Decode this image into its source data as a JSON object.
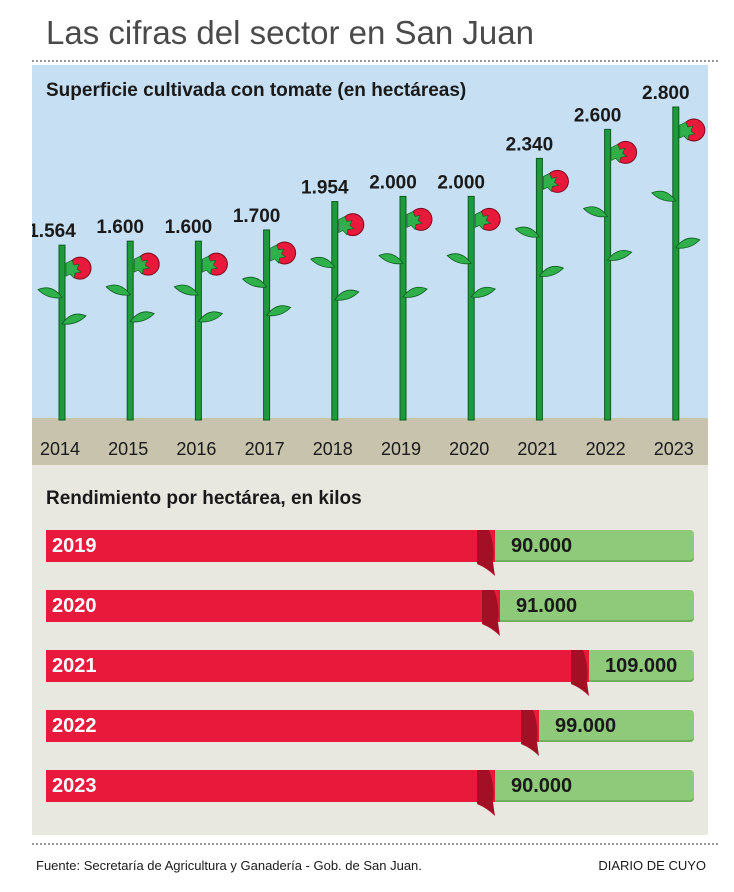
{
  "page": {
    "title": "Las cifras del sector en San Juan",
    "source": "Fuente: Secretaría de Agricultura y Ganadería - Gob. de San Juan.",
    "credit": "DIARIO DE CUYO"
  },
  "colors": {
    "sky": "#c6dff3",
    "ground": "#c7c3ad",
    "stem": "#1f9a3a",
    "leaf": "#2fb04a",
    "tomato": "#e8193b",
    "bar_red": "#e8193b",
    "bar_green": "#8fca7a",
    "panel_bottom": "#e8e7e0"
  },
  "chart_data": [
    {
      "type": "bar",
      "title": "Superficie cultivada con tomate (en hectáreas)",
      "categories": [
        "2014",
        "2015",
        "2016",
        "2017",
        "2018",
        "2019",
        "2020",
        "2021",
        "2022",
        "2023"
      ],
      "values": [
        1564,
        1600,
        1600,
        1700,
        1954,
        2000,
        2000,
        2340,
        2600,
        2800
      ],
      "value_labels": [
        "1.564",
        "1.600",
        "1.600",
        "1.700",
        "1.954",
        "2.000",
        "2.000",
        "2.340",
        "2.600",
        "2.800"
      ],
      "xlabel": "",
      "ylabel": "",
      "grid": false,
      "mark_style": "tomato-plant"
    },
    {
      "type": "bar",
      "orientation": "horizontal",
      "title": "Rendimiento por hectárea, en kilos",
      "categories": [
        "2019",
        "2020",
        "2021",
        "2022",
        "2023"
      ],
      "values": [
        90000,
        91000,
        109000,
        99000,
        90000
      ],
      "value_labels": [
        "90.000",
        "91.000",
        "109.000",
        "99.000",
        "90.000"
      ],
      "xlabel": "",
      "ylabel": "",
      "grid": false
    }
  ]
}
